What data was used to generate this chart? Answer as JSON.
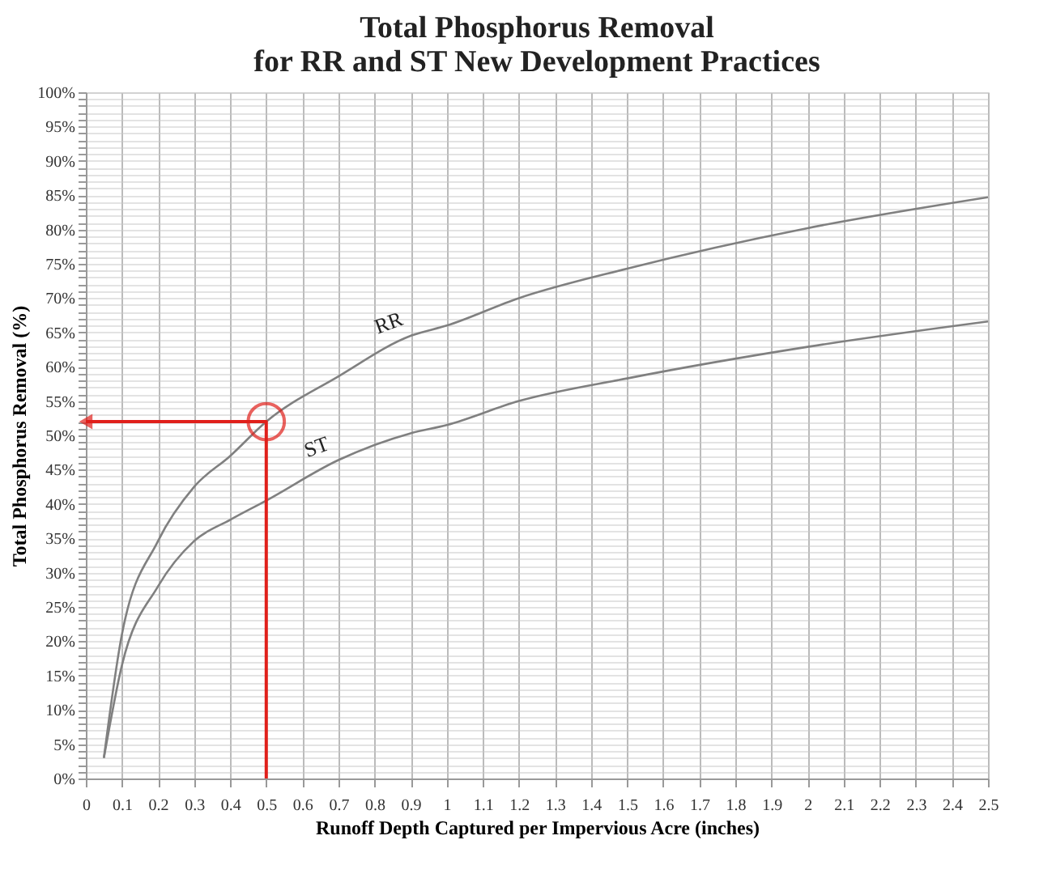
{
  "chart_data": {
    "type": "line",
    "title": [
      "Total Phosphorus Removal",
      "for RR and ST New Development Practices"
    ],
    "xlabel": "Runoff Depth Captured per Impervious Acre (inches)",
    "ylabel": "Total Phosphorus Removal (%)",
    "xlim": [
      0,
      2.5
    ],
    "ylim": [
      0,
      100
    ],
    "xticks": [
      0,
      0.1,
      0.2,
      0.3,
      0.4,
      0.5,
      0.6,
      0.7,
      0.8,
      0.9,
      1,
      1.1,
      1.2,
      1.3,
      1.4,
      1.5,
      1.6,
      1.7,
      1.8,
      1.9,
      2,
      2.1,
      2.2,
      2.3,
      2.4,
      2.5
    ],
    "yticks": [
      {
        "value": 0,
        "label": "0%"
      },
      {
        "value": 1,
        "label": null
      },
      {
        "value": 2,
        "label": null
      },
      {
        "value": 3,
        "label": null
      },
      {
        "value": 4,
        "label": null
      },
      {
        "value": 5,
        "label": "5%"
      },
      {
        "value": 6,
        "label": null
      },
      {
        "value": 7,
        "label": null
      },
      {
        "value": 8,
        "label": null
      },
      {
        "value": 9,
        "label": null
      },
      {
        "value": 10,
        "label": "10%"
      },
      {
        "value": 11,
        "label": null
      },
      {
        "value": 12,
        "label": null
      },
      {
        "value": 13,
        "label": null
      },
      {
        "value": 14,
        "label": null
      },
      {
        "value": 15,
        "label": "15%"
      },
      {
        "value": 16,
        "label": null
      },
      {
        "value": 17,
        "label": null
      },
      {
        "value": 18,
        "label": null
      },
      {
        "value": 19,
        "label": null
      },
      {
        "value": 20,
        "label": "20%"
      },
      {
        "value": 21,
        "label": null
      },
      {
        "value": 22,
        "label": null
      },
      {
        "value": 23,
        "label": null
      },
      {
        "value": 24,
        "label": null
      },
      {
        "value": 25,
        "label": "25%"
      },
      {
        "value": 26,
        "label": null
      },
      {
        "value": 27,
        "label": null
      },
      {
        "value": 28,
        "label": null
      },
      {
        "value": 29,
        "label": null
      },
      {
        "value": 30,
        "label": "30%"
      },
      {
        "value": 31,
        "label": null
      },
      {
        "value": 32,
        "label": null
      },
      {
        "value": 33,
        "label": null
      },
      {
        "value": 34,
        "label": null
      },
      {
        "value": 35,
        "label": "35%"
      },
      {
        "value": 36,
        "label": null
      },
      {
        "value": 37,
        "label": null
      },
      {
        "value": 38,
        "label": null
      },
      {
        "value": 39,
        "label": null
      },
      {
        "value": 40,
        "label": "40%"
      },
      {
        "value": 41,
        "label": null
      },
      {
        "value": 42,
        "label": null
      },
      {
        "value": 43,
        "label": null
      },
      {
        "value": 44,
        "label": null
      },
      {
        "value": 45,
        "label": "45%"
      },
      {
        "value": 46,
        "label": null
      },
      {
        "value": 47,
        "label": null
      },
      {
        "value": 48,
        "label": null
      },
      {
        "value": 49,
        "label": null
      },
      {
        "value": 50,
        "label": "50%"
      },
      {
        "value": 51,
        "label": null
      },
      {
        "value": 52,
        "label": null
      },
      {
        "value": 53,
        "label": null
      },
      {
        "value": 54,
        "label": null
      },
      {
        "value": 55,
        "label": "55%"
      },
      {
        "value": 56,
        "label": null
      },
      {
        "value": 57,
        "label": null
      },
      {
        "value": 58,
        "label": null
      },
      {
        "value": 59,
        "label": null
      },
      {
        "value": 60,
        "label": "60%"
      },
      {
        "value": 61,
        "label": null
      },
      {
        "value": 62,
        "label": null
      },
      {
        "value": 63,
        "label": null
      },
      {
        "value": 64,
        "label": null
      },
      {
        "value": 65,
        "label": "65%"
      },
      {
        "value": 66,
        "label": null
      },
      {
        "value": 67,
        "label": null
      },
      {
        "value": 68,
        "label": null
      },
      {
        "value": 69,
        "label": null
      },
      {
        "value": 70,
        "label": "70%"
      },
      {
        "value": 71,
        "label": null
      },
      {
        "value": 72,
        "label": null
      },
      {
        "value": 73,
        "label": null
      },
      {
        "value": 74,
        "label": null
      },
      {
        "value": 75,
        "label": "75%"
      },
      {
        "value": 76,
        "label": null
      },
      {
        "value": 77,
        "label": null
      },
      {
        "value": 78,
        "label": null
      },
      {
        "value": 79,
        "label": null
      },
      {
        "value": 80,
        "label": "80%"
      },
      {
        "value": 81,
        "label": null
      },
      {
        "value": 82,
        "label": null
      },
      {
        "value": 83,
        "label": null
      },
      {
        "value": 84,
        "label": null
      },
      {
        "value": 85,
        "label": "85%"
      },
      {
        "value": 86,
        "label": null
      },
      {
        "value": 87,
        "label": null
      },
      {
        "value": 88,
        "label": null
      },
      {
        "value": 89,
        "label": null
      },
      {
        "value": 90,
        "label": "90%"
      },
      {
        "value": 91,
        "label": null
      },
      {
        "value": 92,
        "label": null
      },
      {
        "value": 93,
        "label": null
      },
      {
        "value": 94,
        "label": null
      },
      {
        "value": 95,
        "label": "95%"
      },
      {
        "value": 96,
        "label": null
      },
      {
        "value": 97,
        "label": null
      },
      {
        "value": 98,
        "label": null
      },
      {
        "value": 99,
        "label": null
      },
      {
        "value": 100,
        "label": "100%"
      }
    ],
    "grid": true,
    "line_style": "solid",
    "series": [
      {
        "name": "RR",
        "color": "#808080",
        "x": [
          0.05,
          0.1,
          0.2,
          0.3,
          0.4,
          0.5,
          0.7,
          0.9,
          1.0,
          1.2,
          1.5,
          2.0,
          2.5
        ],
        "values": [
          3,
          21,
          34.6,
          42.5,
          47,
          52,
          58.6,
          64.5,
          66,
          70,
          74.3,
          80.2,
          84.7
        ]
      },
      {
        "name": "ST",
        "color": "#808080",
        "x": [
          0.05,
          0.1,
          0.2,
          0.3,
          0.4,
          0.5,
          0.7,
          0.9,
          1.0,
          1.2,
          1.5,
          2.0,
          2.5
        ],
        "values": [
          3,
          16.5,
          28,
          34.6,
          37.7,
          40.5,
          46.4,
          50.3,
          51.5,
          55,
          58.3,
          62.9,
          66.6
        ]
      },
      {
        "type": "line",
        "color": "#e0201b",
        "x": [
          0.5,
          0.5,
          0
        ],
        "values": [
          0,
          52,
          52
        ]
      },
      {
        "type": "scatter",
        "marker": "circle",
        "color": "#e0201b",
        "x": [
          0.5
        ],
        "values": [
          52
        ]
      }
    ]
  }
}
